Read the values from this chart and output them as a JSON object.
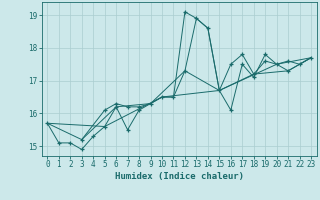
{
  "xlabel": "Humidex (Indice chaleur)",
  "ylabel": "",
  "xlim": [
    -0.5,
    23.5
  ],
  "ylim": [
    14.7,
    19.4
  ],
  "yticks": [
    15,
    16,
    17,
    18,
    19
  ],
  "xticks": [
    0,
    1,
    2,
    3,
    4,
    5,
    6,
    7,
    8,
    9,
    10,
    11,
    12,
    13,
    14,
    15,
    16,
    17,
    18,
    19,
    20,
    21,
    22,
    23
  ],
  "background_color": "#cce8ea",
  "line_color": "#1a6b6b",
  "grid_color": "#aacdd0",
  "curve_segments": [
    [
      [
        0,
        15.7
      ],
      [
        1,
        15.1
      ],
      [
        2,
        15.1
      ],
      [
        3,
        14.9
      ],
      [
        4,
        15.3
      ],
      [
        5,
        15.6
      ],
      [
        6,
        16.2
      ],
      [
        7,
        15.5
      ],
      [
        8,
        16.1
      ],
      [
        9,
        16.3
      ],
      [
        10,
        16.5
      ],
      [
        11,
        16.5
      ],
      [
        12,
        19.1
      ],
      [
        13,
        18.9
      ],
      [
        14,
        18.6
      ],
      [
        15,
        16.7
      ],
      [
        16,
        16.1
      ],
      [
        17,
        17.5
      ],
      [
        18,
        17.1
      ],
      [
        19,
        17.8
      ],
      [
        20,
        17.5
      ],
      [
        21,
        17.3
      ],
      [
        22,
        17.5
      ],
      [
        23,
        17.7
      ]
    ],
    [
      [
        3,
        15.2
      ],
      [
        5,
        16.1
      ],
      [
        6,
        16.3
      ],
      [
        7,
        16.2
      ],
      [
        8,
        16.2
      ],
      [
        9,
        16.3
      ],
      [
        10,
        16.5
      ],
      [
        11,
        16.5
      ],
      [
        12,
        17.3
      ],
      [
        13,
        18.9
      ],
      [
        14,
        18.6
      ],
      [
        15,
        16.7
      ],
      [
        16,
        17.5
      ],
      [
        17,
        17.8
      ],
      [
        18,
        17.2
      ],
      [
        19,
        17.6
      ],
      [
        20,
        17.5
      ],
      [
        21,
        17.6
      ],
      [
        22,
        17.5
      ],
      [
        23,
        17.7
      ]
    ],
    [
      [
        0,
        15.7
      ],
      [
        3,
        15.2
      ],
      [
        6,
        16.2
      ],
      [
        9,
        16.3
      ],
      [
        12,
        17.3
      ],
      [
        15,
        16.7
      ],
      [
        18,
        17.2
      ],
      [
        21,
        17.3
      ],
      [
        23,
        17.7
      ]
    ],
    [
      [
        0,
        15.7
      ],
      [
        5,
        15.6
      ],
      [
        10,
        16.5
      ],
      [
        15,
        16.7
      ],
      [
        20,
        17.5
      ],
      [
        23,
        17.7
      ]
    ]
  ],
  "marker_points": [
    [
      0,
      15.7
    ],
    [
      1,
      15.1
    ],
    [
      2,
      15.1
    ],
    [
      3,
      14.9
    ],
    [
      3,
      15.2
    ],
    [
      4,
      15.3
    ],
    [
      5,
      16.1
    ],
    [
      5,
      15.6
    ],
    [
      6,
      16.2
    ],
    [
      6,
      16.3
    ],
    [
      7,
      15.5
    ],
    [
      7,
      16.2
    ],
    [
      8,
      16.1
    ],
    [
      8,
      16.2
    ],
    [
      9,
      16.3
    ],
    [
      10,
      16.5
    ],
    [
      11,
      16.5
    ],
    [
      12,
      17.3
    ],
    [
      12,
      19.1
    ],
    [
      13,
      18.9
    ],
    [
      14,
      18.6
    ],
    [
      15,
      16.7
    ],
    [
      16,
      16.1
    ],
    [
      16,
      17.5
    ],
    [
      17,
      17.5
    ],
    [
      17,
      17.8
    ],
    [
      18,
      17.1
    ],
    [
      18,
      17.2
    ],
    [
      19,
      17.6
    ],
    [
      19,
      17.8
    ],
    [
      20,
      17.5
    ],
    [
      21,
      17.3
    ],
    [
      21,
      17.6
    ],
    [
      22,
      17.5
    ],
    [
      23,
      17.7
    ]
  ]
}
